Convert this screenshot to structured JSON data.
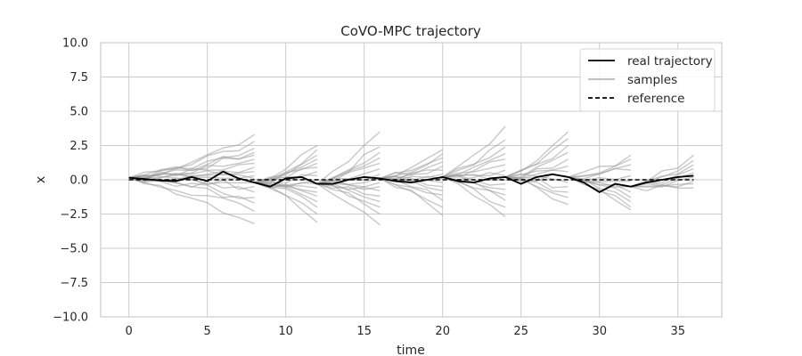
{
  "chart_data": {
    "type": "line",
    "title": "CoVO-MPC trajectory",
    "xlabel": "time",
    "ylabel": "x",
    "xlim": [
      -1.8,
      37.8
    ],
    "ylim": [
      -10,
      10
    ],
    "xticks": [
      0,
      5,
      10,
      15,
      20,
      25,
      30,
      35
    ],
    "yticks": [
      -10.0,
      -7.5,
      -5.0,
      -2.5,
      0.0,
      2.5,
      5.0,
      7.5,
      10.0
    ],
    "grid": true,
    "legend": {
      "position": "top-right",
      "entries": [
        {
          "label": "real trajectory",
          "color": "#000000",
          "style": "solid"
        },
        {
          "label": "samples",
          "color": "#b8b8b8",
          "style": "solid"
        },
        {
          "label": "reference",
          "color": "#000000",
          "style": "dashed"
        }
      ]
    },
    "series": [
      {
        "name": "real trajectory",
        "color": "#000000",
        "x": [
          0,
          1,
          2,
          3,
          4,
          5,
          6,
          7,
          8,
          9,
          10,
          11,
          12,
          13,
          14,
          15,
          16,
          17,
          18,
          19,
          20,
          21,
          22,
          23,
          24,
          25,
          26,
          27,
          28,
          29,
          30,
          31,
          32,
          33,
          34,
          35,
          36
        ],
        "y": [
          0.15,
          0.05,
          -0.05,
          -0.1,
          0.2,
          -0.1,
          0.6,
          0.1,
          -0.2,
          -0.5,
          0.1,
          0.2,
          -0.3,
          -0.3,
          0.0,
          0.2,
          0.1,
          -0.1,
          -0.2,
          0.0,
          0.2,
          -0.1,
          -0.2,
          0.1,
          0.2,
          -0.3,
          0.2,
          0.4,
          0.2,
          -0.2,
          -0.9,
          -0.3,
          -0.5,
          -0.2,
          0.0,
          0.2,
          0.3
        ]
      },
      {
        "name": "reference",
        "color": "#000000",
        "style": "dashed",
        "x": [
          0,
          36
        ],
        "y": [
          0,
          0
        ]
      }
    ],
    "samples": {
      "color": "#9a9a9a",
      "segments": [
        {
          "start": 0,
          "end": 8,
          "end_values": [
            3.3,
            2.8,
            2.3,
            2.0,
            1.8,
            1.5,
            1.2,
            0.9,
            0.6,
            0.3,
            0.1,
            -0.2,
            -0.5,
            -0.9,
            -1.3,
            -1.7,
            -2.3,
            -3.2
          ]
        },
        {
          "start": 8,
          "end": 12,
          "end_values": [
            2.5,
            2.2,
            1.8,
            1.5,
            1.2,
            0.9,
            0.6,
            0.3,
            0.0,
            -0.3,
            -0.6,
            -0.9,
            -1.2,
            -1.6,
            -2.0,
            -2.5,
            -3.1
          ]
        },
        {
          "start": 12,
          "end": 16,
          "end_values": [
            3.5,
            2.4,
            2.0,
            1.6,
            1.2,
            0.8,
            0.4,
            0.1,
            -0.2,
            -0.5,
            -0.8,
            -1.2,
            -1.6,
            -2.0,
            -2.5,
            -3.3
          ]
        },
        {
          "start": 16,
          "end": 20,
          "end_values": [
            2.2,
            1.9,
            1.6,
            1.3,
            1.0,
            0.7,
            0.4,
            0.1,
            -0.2,
            -0.5,
            -0.8,
            -1.1,
            -1.5,
            -2.0,
            -2.6
          ]
        },
        {
          "start": 20,
          "end": 24,
          "end_values": [
            3.9,
            2.9,
            2.4,
            1.9,
            1.5,
            1.1,
            0.7,
            0.3,
            0.0,
            -0.3,
            -0.7,
            -1.1,
            -1.5,
            -2.0,
            -2.7
          ]
        },
        {
          "start": 24,
          "end": 28,
          "end_values": [
            3.5,
            3.0,
            2.5,
            2.0,
            1.5,
            1.0,
            0.6,
            0.2,
            -0.2,
            -0.5,
            -0.9,
            -1.3,
            -1.8
          ]
        },
        {
          "start": 28,
          "end": 32,
          "end_values": [
            1.8,
            1.5,
            1.1,
            0.7,
            0.3,
            -0.1,
            -0.5,
            -0.9,
            -1.3,
            -1.6,
            -2.0,
            -2.2
          ]
        },
        {
          "start": 32,
          "end": 36,
          "end_values": [
            1.8,
            1.4,
            1.1,
            0.8,
            0.5,
            0.2,
            -0.1,
            -0.3,
            -0.6
          ]
        }
      ]
    }
  }
}
